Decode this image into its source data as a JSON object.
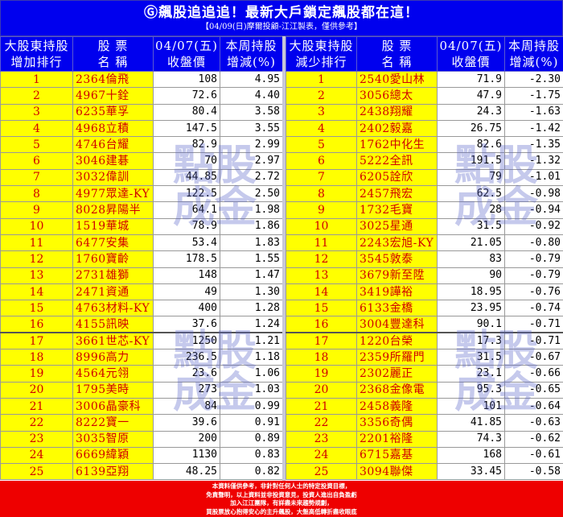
{
  "header": {
    "title": "飆股追追追！最新大戶鎖定飆股都在這！",
    "subtitle": "【04/09(日)摩爾投顧-江江製表，僅供參考】",
    "logo_icon": "g-circle-icon"
  },
  "increase": {
    "headers": {
      "rank1": "大股東持股",
      "rank2": "增加排行",
      "name1": "股 票",
      "name2": "名 稱",
      "price1": "04/07(五)",
      "price2": "收盤價",
      "chg1": "本周持股",
      "chg2": "增減(%)"
    },
    "rows": [
      {
        "rank": "1",
        "name": "2364倫飛",
        "price": "108",
        "chg": "4.95"
      },
      {
        "rank": "2",
        "name": "4967十銓",
        "price": "72.6",
        "chg": "4.40"
      },
      {
        "rank": "3",
        "name": "6235華孚",
        "price": "80.4",
        "chg": "3.58"
      },
      {
        "rank": "4",
        "name": "4968立積",
        "price": "147.5",
        "chg": "3.55"
      },
      {
        "rank": "5",
        "name": "4746台耀",
        "price": "82.9",
        "chg": "2.99"
      },
      {
        "rank": "6",
        "name": "3046建碁",
        "price": "70",
        "chg": "2.97"
      },
      {
        "rank": "7",
        "name": "3032偉訓",
        "price": "44.85",
        "chg": "2.72"
      },
      {
        "rank": "8",
        "name": "4977眾達-KY",
        "price": "122.5",
        "chg": "2.50"
      },
      {
        "rank": "9",
        "name": "8028昇陽半",
        "price": "64.1",
        "chg": "1.98"
      },
      {
        "rank": "10",
        "name": "1519華城",
        "price": "78.9",
        "chg": "1.86"
      },
      {
        "rank": "11",
        "name": "6477安集",
        "price": "53.4",
        "chg": "1.83"
      },
      {
        "rank": "12",
        "name": "1760寶齡",
        "price": "178.5",
        "chg": "1.55"
      },
      {
        "rank": "13",
        "name": "2731雄獅",
        "price": "148",
        "chg": "1.47"
      },
      {
        "rank": "14",
        "name": "2471資通",
        "price": "49",
        "chg": "1.30"
      },
      {
        "rank": "15",
        "name": "4763材料-KY",
        "price": "400",
        "chg": "1.28"
      },
      {
        "rank": "16",
        "name": "4155訊映",
        "price": "37.6",
        "chg": "1.24"
      },
      {
        "rank": "17",
        "name": "3661世芯-KY",
        "price": "1250",
        "chg": "1.21"
      },
      {
        "rank": "18",
        "name": "8996高力",
        "price": "236.5",
        "chg": "1.18"
      },
      {
        "rank": "19",
        "name": "4564元翎",
        "price": "23.6",
        "chg": "1.06"
      },
      {
        "rank": "20",
        "name": "1795美時",
        "price": "273",
        "chg": "1.03"
      },
      {
        "rank": "21",
        "name": "3006晶豪科",
        "price": "84",
        "chg": "0.99"
      },
      {
        "rank": "22",
        "name": "8222寶一",
        "price": "39.6",
        "chg": "0.91"
      },
      {
        "rank": "23",
        "name": "3035智原",
        "price": "200",
        "chg": "0.89"
      },
      {
        "rank": "24",
        "name": "6669緯穎",
        "price": "1130",
        "chg": "0.83"
      },
      {
        "rank": "25",
        "name": "6139亞翔",
        "price": "48.25",
        "chg": "0.82"
      }
    ]
  },
  "decrease": {
    "headers": {
      "rank1": "大股東持股",
      "rank2": "減少排行",
      "name1": "股 票",
      "name2": "名 稱",
      "price1": "04/07(五)",
      "price2": "收盤價",
      "chg1": "本周持股",
      "chg2": "增減(%)"
    },
    "rows": [
      {
        "rank": "1",
        "name": "2540愛山林",
        "price": "71.9",
        "chg": "-2.30"
      },
      {
        "rank": "2",
        "name": "3056總太",
        "price": "47.9",
        "chg": "-1.75"
      },
      {
        "rank": "3",
        "name": "2438翔耀",
        "price": "24.3",
        "chg": "-1.63"
      },
      {
        "rank": "4",
        "name": "2402毅嘉",
        "price": "26.75",
        "chg": "-1.42"
      },
      {
        "rank": "5",
        "name": "1762中化生",
        "price": "82.6",
        "chg": "-1.35"
      },
      {
        "rank": "6",
        "name": "5222全訊",
        "price": "191.5",
        "chg": "-1.32"
      },
      {
        "rank": "7",
        "name": "6205詮欣",
        "price": "79",
        "chg": "-1.01"
      },
      {
        "rank": "8",
        "name": "2457飛宏",
        "price": "62.5",
        "chg": "-0.98"
      },
      {
        "rank": "9",
        "name": "1732毛寶",
        "price": "28",
        "chg": "-0.94"
      },
      {
        "rank": "10",
        "name": "3025星通",
        "price": "31.5",
        "chg": "-0.92"
      },
      {
        "rank": "11",
        "name": "2243宏旭-KY",
        "price": "21.05",
        "chg": "-0.80"
      },
      {
        "rank": "12",
        "name": "3545敦泰",
        "price": "83",
        "chg": "-0.79"
      },
      {
        "rank": "13",
        "name": "3679新至陞",
        "price": "90",
        "chg": "-0.79"
      },
      {
        "rank": "14",
        "name": "3419譁裕",
        "price": "18.95",
        "chg": "-0.76"
      },
      {
        "rank": "15",
        "name": "6133金橋",
        "price": "23.95",
        "chg": "-0.74"
      },
      {
        "rank": "16",
        "name": "3004豐達科",
        "price": "90.1",
        "chg": "-0.71"
      },
      {
        "rank": "17",
        "name": "1220台榮",
        "price": "17.3",
        "chg": "-0.71"
      },
      {
        "rank": "18",
        "name": "2359所羅門",
        "price": "31.5",
        "chg": "-0.67"
      },
      {
        "rank": "19",
        "name": "2302麗正",
        "price": "23.1",
        "chg": "-0.66"
      },
      {
        "rank": "20",
        "name": "2368金像電",
        "price": "95.3",
        "chg": "-0.65"
      },
      {
        "rank": "21",
        "name": "2458義隆",
        "price": "101",
        "chg": "-0.64"
      },
      {
        "rank": "22",
        "name": "3356奇偶",
        "price": "41.85",
        "chg": "-0.63"
      },
      {
        "rank": "23",
        "name": "2201裕隆",
        "price": "74.3",
        "chg": "-0.62"
      },
      {
        "rank": "24",
        "name": "6715嘉基",
        "price": "168",
        "chg": "-0.61"
      },
      {
        "rank": "25",
        "name": "3094聯傑",
        "price": "33.45",
        "chg": "-0.58"
      }
    ]
  },
  "watermark": "點股成金",
  "footer": {
    "lines": [
      "本資料僅供參考，非針對任何人士的特定投資目標，",
      "免責聲明，以上資料並非投資意見，投資人進出自負盈虧",
      "加入江江團隊，有詳盡未來趨勢規劃，",
      "買股票放心抱得安心的主升飆股，大盤高低轉折盡收眼底"
    ]
  },
  "colors": {
    "header_bg": "#0000ee",
    "highlight": "#ffff00",
    "text_red": "#d00000",
    "footer_bg": "#ee0000"
  }
}
